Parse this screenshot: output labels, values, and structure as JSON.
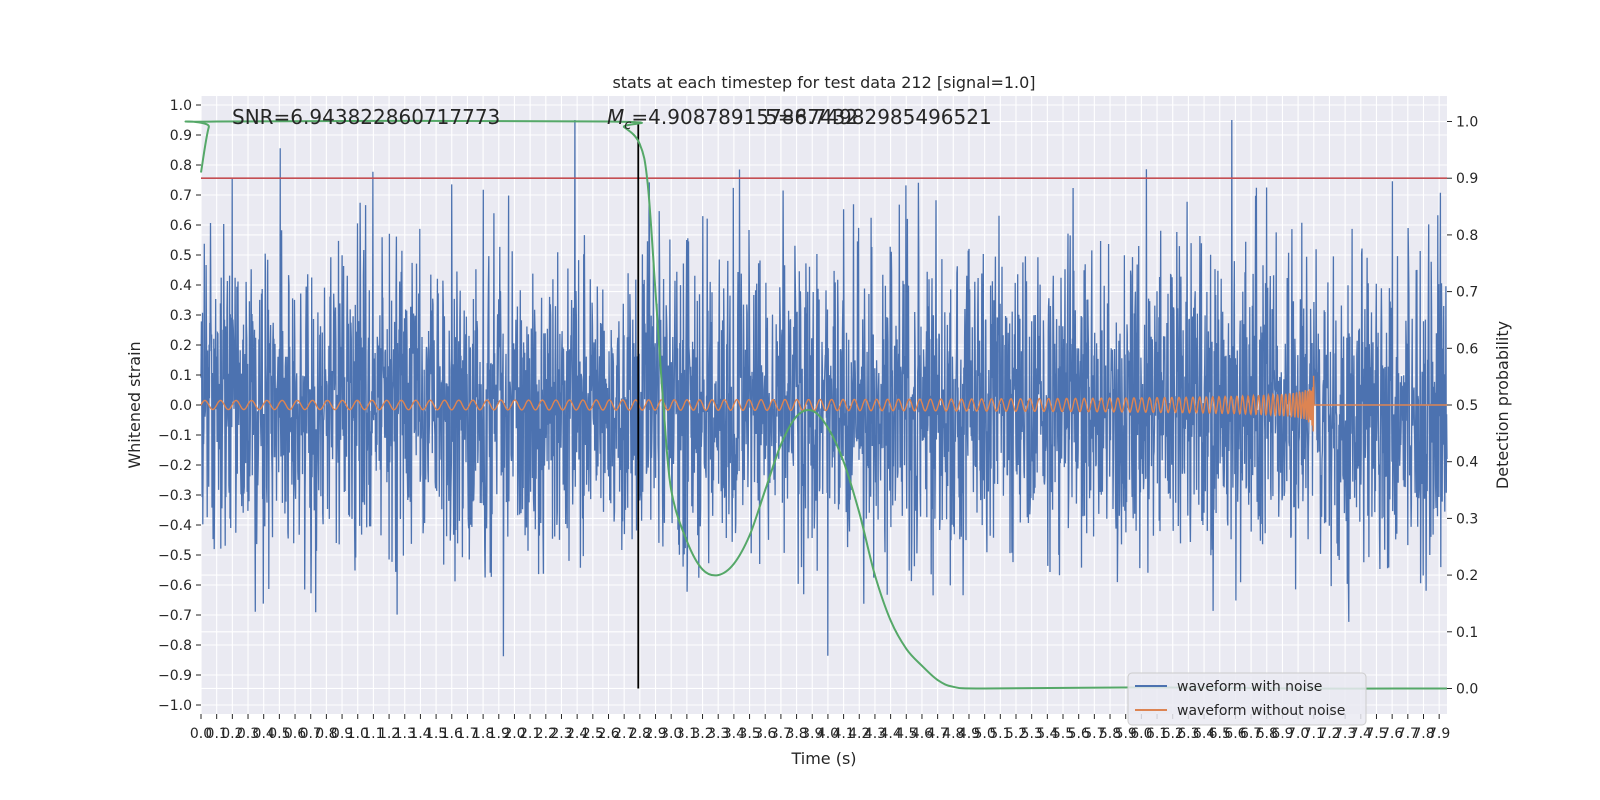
{
  "chart_data": {
    "type": "line",
    "title": "stats at each timestep for test data 212 [signal=1.0]",
    "xlabel": "Time (s)",
    "ylabel": "Whitened strain",
    "y2label": "Detection probability",
    "xlim": [
      0.0,
      7.95
    ],
    "ylim": [
      -1.03,
      1.03
    ],
    "y2lim": [
      -0.045,
      1.045
    ],
    "x_ticks": [
      "0.0",
      "0.1",
      "0.2",
      "0.3",
      "0.4",
      "0.5",
      "0.6",
      "0.7",
      "0.8",
      "0.9",
      "1.0",
      "1.1",
      "1.2",
      "1.3",
      "1.4",
      "1.5",
      "1.6",
      "1.7",
      "1.8",
      "1.9",
      "2.0",
      "2.1",
      "2.2",
      "2.3",
      "2.4",
      "2.5",
      "2.6",
      "2.7",
      "2.8",
      "2.9",
      "3.0",
      "3.1",
      "3.2",
      "3.3",
      "3.4",
      "3.5",
      "3.6",
      "3.7",
      "3.8",
      "3.9",
      "4.0",
      "4.1",
      "4.2",
      "4.3",
      "4.4",
      "4.5",
      "4.6",
      "4.7",
      "4.8",
      "4.9",
      "5.0",
      "5.1",
      "5.2",
      "5.3",
      "5.4",
      "5.5",
      "5.6",
      "5.7",
      "5.8",
      "5.9",
      "6.0",
      "6.1",
      "6.2",
      "6.3",
      "6.4",
      "6.5",
      "6.6",
      "6.7",
      "6.8",
      "6.9",
      "7.0",
      "7.1",
      "7.2",
      "7.3",
      "7.4",
      "7.5",
      "7.6",
      "7.7",
      "7.8",
      "7.9"
    ],
    "y_ticks": [
      "1.0",
      "0.9",
      "0.8",
      "0.7",
      "0.6",
      "0.5",
      "0.4",
      "0.3",
      "0.2",
      "0.1",
      "0.0",
      "−0.1",
      "−0.2",
      "−0.3",
      "−0.4",
      "−0.5",
      "−0.6",
      "−0.7",
      "−0.8",
      "−0.9",
      "−1.0"
    ],
    "y2_ticks": [
      "1.0",
      "0.9",
      "0.8",
      "0.7",
      "0.6",
      "0.5",
      "0.4",
      "0.3",
      "0.2",
      "0.1",
      "0.0"
    ],
    "annotations": {
      "snr": "SNR=6.943822860717773",
      "mc_symbol": "M",
      "mc_subscript": "c",
      "mc_value": "=4.908789157867432",
      "overlap": "5=8.74982985496521"
    },
    "threshold": {
      "value": 0.9,
      "axis": "y2",
      "color": "#c44e52"
    },
    "marker_time": 2.79,
    "series": [
      {
        "name": "waveform with noise",
        "color": "#4c72b0",
        "amplitude_std": 0.26,
        "peak_abs": 0.95
      },
      {
        "name": "waveform without noise",
        "color": "#dd8452",
        "chirp_end_time": 7.1,
        "initial_amplitude": 0.015,
        "peak_amplitude": 0.17
      },
      {
        "name": "detection probability",
        "color": "#55a868",
        "axis": "y2",
        "points": [
          [
            0.0,
            0.91
          ],
          [
            0.05,
            0.99
          ],
          [
            0.1,
            1.0
          ],
          [
            2.6,
            1.0
          ],
          [
            2.7,
            0.99
          ],
          [
            2.8,
            0.96
          ],
          [
            2.85,
            0.89
          ],
          [
            2.9,
            0.7
          ],
          [
            2.95,
            0.5
          ],
          [
            3.0,
            0.35
          ],
          [
            3.1,
            0.26
          ],
          [
            3.2,
            0.21
          ],
          [
            3.3,
            0.2
          ],
          [
            3.4,
            0.22
          ],
          [
            3.5,
            0.27
          ],
          [
            3.6,
            0.35
          ],
          [
            3.7,
            0.43
          ],
          [
            3.8,
            0.48
          ],
          [
            3.9,
            0.49
          ],
          [
            4.0,
            0.46
          ],
          [
            4.1,
            0.4
          ],
          [
            4.2,
            0.31
          ],
          [
            4.3,
            0.2
          ],
          [
            4.4,
            0.12
          ],
          [
            4.5,
            0.07
          ],
          [
            4.6,
            0.04
          ],
          [
            4.7,
            0.015
          ],
          [
            4.8,
            0.003
          ],
          [
            5.0,
            0.0
          ],
          [
            6.0,
            0.002
          ],
          [
            7.0,
            0.0
          ],
          [
            7.95,
            0.0
          ]
        ]
      }
    ],
    "legend": {
      "placement": "lower-right",
      "entries": [
        "waveform with noise",
        "waveform without noise"
      ]
    },
    "grid": true
  }
}
